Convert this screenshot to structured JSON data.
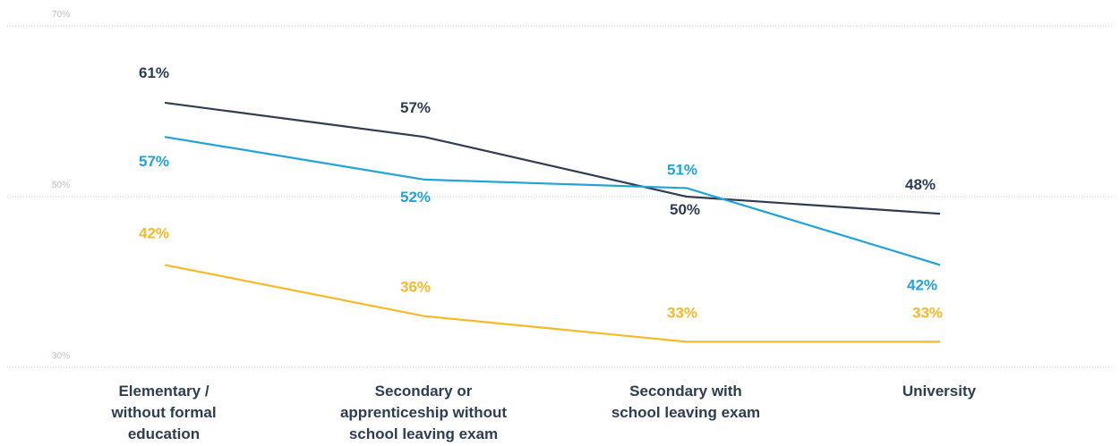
{
  "chart_data": {
    "type": "line",
    "categories": [
      [
        "Elementary /",
        "without formal",
        "education"
      ],
      [
        "Secondary or",
        "apprenticeship without",
        "school leaving exam"
      ],
      [
        "Secondary with",
        "school leaving exam"
      ],
      [
        "University"
      ]
    ],
    "y_ticks": [
      "70%",
      "50%",
      "30%"
    ],
    "ylim": [
      30,
      70
    ],
    "grid": true,
    "series": [
      {
        "color": "#2e3d52",
        "values": [
          61,
          57,
          50,
          48
        ],
        "labels": [
          "61%",
          "57%",
          "50%",
          "48%"
        ]
      },
      {
        "color": "#1fa3d9",
        "values": [
          57,
          52,
          51,
          42
        ],
        "labels": [
          "57%",
          "52%",
          "51%",
          "42%"
        ]
      },
      {
        "color": "#f7b928",
        "values": [
          42,
          36,
          33,
          33
        ],
        "labels": [
          "42%",
          "36%",
          "33%",
          "33%"
        ]
      }
    ]
  }
}
